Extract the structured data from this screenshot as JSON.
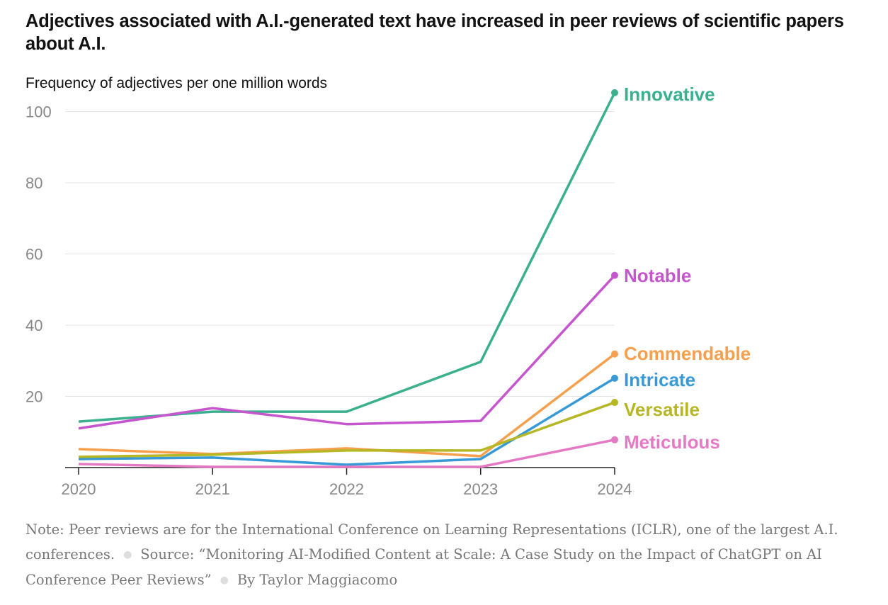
{
  "chart_data": {
    "type": "line",
    "title": "Adjectives associated with A.I.-generated text have increased in peer reviews of scientific papers about A.I.",
    "subtitle": "Frequency of adjectives per one million words",
    "xlabel": "",
    "ylabel": "Frequency of adjectives per one million words",
    "x": [
      2020,
      2021,
      2022,
      2023,
      2024
    ],
    "x_tick_labels": [
      "2020",
      "2021",
      "2022",
      "2023",
      "2024"
    ],
    "y_ticks": [
      20,
      40,
      60,
      80,
      100
    ],
    "y_tick_labels": [
      "20",
      "40",
      "60",
      "80",
      "100"
    ],
    "ylim": [
      0,
      105
    ],
    "grid": true,
    "legend": "direct labels at right end of lines",
    "series": [
      {
        "name": "Innovative",
        "color": "#3bb08f",
        "values": [
          12.9,
          15.7,
          15.7,
          29.7,
          105.3
        ]
      },
      {
        "name": "Notable",
        "color": "#c556cd",
        "values": [
          11.0,
          16.7,
          12.2,
          13.1,
          54.0
        ]
      },
      {
        "name": "Commendable",
        "color": "#f6a04d",
        "values": [
          5.2,
          3.8,
          5.4,
          3.2,
          31.9
        ]
      },
      {
        "name": "Intricate",
        "color": "#3799d6",
        "values": [
          2.4,
          2.8,
          0.8,
          2.4,
          25.1
        ]
      },
      {
        "name": "Versatile",
        "color": "#b6b724",
        "values": [
          3.0,
          3.6,
          4.8,
          4.8,
          18.3
        ]
      },
      {
        "name": "Meticulous",
        "color": "#e57ac4",
        "values": [
          1.0,
          0.2,
          0.2,
          0.2,
          7.8
        ]
      }
    ]
  },
  "footer": {
    "note": "Note: Peer reviews are for the International Conference on Learning Representations (ICLR), one of the largest A.I. conferences.",
    "source": "Source: “Monitoring AI-Modified Content at Scale: A Case Study on the Impact of ChatGPT on AI Conference Peer Reviews”",
    "byline": "By Taylor Maggiacomo",
    "separator": "●"
  }
}
